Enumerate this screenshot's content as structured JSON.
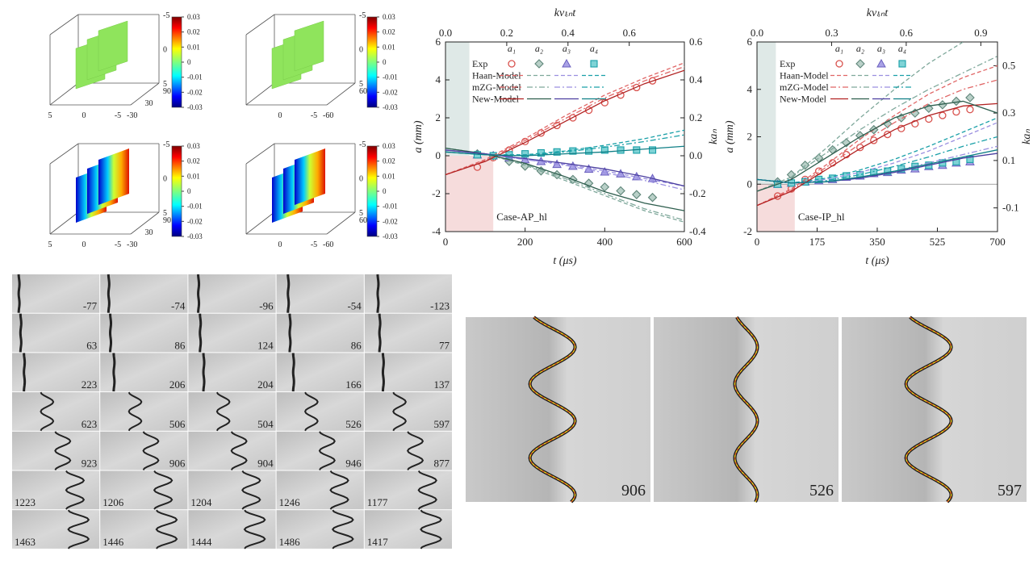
{
  "surface_plots": [
    {
      "x_ticks": [
        5,
        0,
        -5
      ],
      "y_ticks": [
        -30,
        30,
        90
      ],
      "z_ticks": [
        -5,
        0,
        5
      ],
      "colorbar_lim": [
        -0.03,
        0.03
      ],
      "colorbar_ticks": [
        0.03,
        0.02,
        0.01,
        0,
        -0.01,
        -0.02,
        -0.03
      ]
    },
    {
      "x_ticks": [
        0,
        -5
      ],
      "y_ticks": [
        -60,
        60
      ],
      "z_ticks": [
        -5,
        0,
        5
      ],
      "colorbar_lim": [
        -0.03,
        0.03
      ],
      "colorbar_ticks": [
        0.03,
        0.02,
        0.01,
        0,
        -0.01,
        -0.02,
        -0.03
      ]
    },
    {
      "x_ticks": [
        5,
        0,
        -5
      ],
      "y_ticks": [
        -30,
        30,
        90
      ],
      "z_ticks": [
        -5,
        0,
        5
      ],
      "colorbar_lim": [
        -0.03,
        0.03
      ],
      "colorbar_ticks": [
        0.03,
        0.02,
        0.01,
        0,
        -0.01,
        -0.02,
        -0.03
      ]
    },
    {
      "x_ticks": [
        0,
        -5
      ],
      "y_ticks": [
        -60,
        60
      ],
      "z_ticks": [
        -5,
        0,
        5
      ],
      "colorbar_lim": [
        -0.03,
        0.03
      ],
      "colorbar_ticks": [
        0.03,
        0.02,
        0.01,
        0,
        -0.01,
        -0.02,
        -0.03
      ]
    }
  ],
  "chart_data": [
    {
      "type": "line",
      "xlabel": "t (μs)",
      "ylabel": "a (mm)",
      "y2label": "kaₙ",
      "x2label": "kvₗᵢₙt",
      "annotation": "Case-AP_hl",
      "xlim": [
        0,
        600
      ],
      "xticks": [
        0,
        200,
        400,
        600
      ],
      "x2lim": [
        0,
        0.78
      ],
      "x2ticks": [
        {
          "value": 0,
          "label": "0.0"
        },
        0.2,
        0.4,
        0.6
      ],
      "ylim": [
        -4,
        6
      ],
      "yticks": [
        -4,
        -2,
        0,
        2,
        4,
        6
      ],
      "y2lim": [
        -0.4,
        0.6
      ],
      "y2ticks": [
        -0.4,
        -0.2,
        {
          "value": 0,
          "label": "0.0"
        },
        0.2,
        0.4,
        0.6
      ],
      "zero_line": false,
      "spans": [
        {
          "x": [
            0,
            60
          ],
          "y": [
            0,
            6
          ],
          "color": "#dfe9e7"
        },
        {
          "x": [
            0,
            120
          ],
          "y": [
            -4,
            0
          ],
          "color": "#f6dcdc"
        }
      ],
      "components": [
        {
          "name": "a₁",
          "color": "#d9534f",
          "marker": "circle"
        },
        {
          "name": "a₂",
          "color": "#5f8579",
          "marker": "diamond"
        },
        {
          "name": "a₃",
          "color": "#6a5fbf",
          "marker": "triangle"
        },
        {
          "name": "a₄",
          "color": "#1aa0a8",
          "marker": "square"
        }
      ],
      "series": [
        {
          "name": "Exp",
          "style": "markers",
          "x": [
            80,
            120,
            160,
            200,
            240,
            280,
            320,
            360,
            400,
            440,
            480,
            520
          ],
          "values": [
            [
              -0.6,
              -0.1,
              0.3,
              0.75,
              1.2,
              1.6,
              2.0,
              2.4,
              2.8,
              3.2,
              3.6,
              3.95
            ],
            [
              0.1,
              0,
              -0.3,
              -0.55,
              -0.8,
              -1.0,
              -1.25,
              -1.45,
              -1.65,
              -1.85,
              -2.05,
              -2.2
            ],
            [
              0.05,
              0,
              -0.1,
              -0.2,
              -0.3,
              -0.45,
              -0.55,
              -0.7,
              -0.85,
              -0.95,
              -1.1,
              -1.2
            ],
            [
              0.05,
              0,
              0.05,
              0.1,
              0.15,
              0.2,
              0.25,
              0.25,
              0.3,
              0.3,
              0.3,
              0.3
            ]
          ]
        },
        {
          "name": "Haan-Model",
          "style": "dashed",
          "colors": [
            "#e06666",
            "#7fa89b",
            "#9a8fe0",
            "#1aa0a8"
          ],
          "x": [
            0,
            100,
            200,
            300,
            400,
            500,
            600
          ],
          "values": [
            [
              -1.0,
              -0.2,
              0.9,
              2.1,
              3.2,
              4.1,
              4.9
            ],
            [
              0.4,
              0.1,
              -0.5,
              -1.3,
              -2.1,
              -2.9,
              -3.5
            ],
            [
              0.3,
              0.1,
              -0.2,
              -0.45,
              -0.8,
              -1.2,
              -1.6
            ],
            [
              0.2,
              0.05,
              0.05,
              0.25,
              0.55,
              0.9,
              1.35
            ]
          ]
        },
        {
          "name": "mZG-Model",
          "style": "dashdot",
          "colors": [
            "#e06666",
            "#7fa89b",
            "#9a8fe0",
            "#1aa0a8"
          ],
          "x": [
            0,
            100,
            200,
            300,
            400,
            500,
            600
          ],
          "values": [
            [
              -1.0,
              -0.25,
              0.8,
              1.95,
              3.05,
              3.95,
              4.7
            ],
            [
              0.4,
              0.1,
              -0.45,
              -1.2,
              -2.0,
              -2.8,
              -3.4
            ],
            [
              0.3,
              0.1,
              -0.2,
              -0.5,
              -0.9,
              -1.3,
              -1.8
            ],
            [
              0.2,
              0.05,
              0,
              0.2,
              0.45,
              0.75,
              1.1
            ]
          ]
        },
        {
          "name": "New-Model",
          "style": "solid",
          "colors": [
            "#b22222",
            "#2e5e4e",
            "#4b3fa0",
            "#0f7f86"
          ],
          "x": [
            0,
            100,
            200,
            300,
            400,
            500,
            600
          ],
          "values": [
            [
              -1.0,
              -0.3,
              0.7,
              1.8,
              2.9,
              3.8,
              4.5
            ],
            [
              0.4,
              0.1,
              -0.4,
              -1.1,
              -1.9,
              -2.5,
              -2.9
            ],
            [
              0.3,
              0.1,
              -0.15,
              -0.4,
              -0.7,
              -1.1,
              -1.6
            ],
            [
              0.2,
              0.05,
              0,
              0.1,
              0.2,
              0.35,
              0.5
            ]
          ]
        }
      ]
    },
    {
      "type": "line",
      "xlabel": "t (μs)",
      "ylabel": "a (mm)",
      "y2label": "kaₙ",
      "x2label": "kvₗᵢₙt",
      "annotation": "Case-IP_hl",
      "xlim": [
        0,
        700
      ],
      "xticks": [
        0,
        175,
        350,
        525,
        700
      ],
      "x2lim": [
        0,
        0.967
      ],
      "x2ticks": [
        {
          "value": 0,
          "label": "0.0"
        },
        0.3,
        0.6,
        0.9
      ],
      "ylim": [
        -2,
        6
      ],
      "yticks": [
        -2,
        0,
        2,
        4,
        6
      ],
      "y2lim": [
        -0.2,
        0.6
      ],
      "y2ticks": [
        -0.1,
        0.1,
        0.3,
        0.5
      ],
      "zero_line": true,
      "spans": [
        {
          "x": [
            0,
            55
          ],
          "y": [
            0,
            6
          ],
          "color": "#dfe9e7"
        },
        {
          "x": [
            0,
            110
          ],
          "y": [
            -2,
            0
          ],
          "color": "#f6dcdc"
        }
      ],
      "components": [
        {
          "name": "a₁",
          "color": "#d9534f",
          "marker": "circle"
        },
        {
          "name": "a₂",
          "color": "#5f8579",
          "marker": "diamond"
        },
        {
          "name": "a₃",
          "color": "#6a5fbf",
          "marker": "triangle"
        },
        {
          "name": "a₄",
          "color": "#1aa0a8",
          "marker": "square"
        }
      ],
      "series": [
        {
          "name": "Exp",
          "style": "markers",
          "x": [
            60,
            100,
            140,
            180,
            220,
            260,
            300,
            340,
            380,
            420,
            460,
            500,
            540,
            580,
            620
          ],
          "values": [
            [
              -0.5,
              -0.2,
              0.2,
              0.55,
              0.9,
              1.25,
              1.55,
              1.85,
              2.1,
              2.35,
              2.55,
              2.75,
              2.9,
              3.05,
              3.15
            ],
            [
              0.1,
              0.4,
              0.8,
              1.1,
              1.45,
              1.75,
              2.05,
              2.3,
              2.55,
              2.8,
              3.0,
              3.2,
              3.35,
              3.5,
              3.65
            ],
            [
              0,
              0.05,
              0.1,
              0.15,
              0.2,
              0.3,
              0.35,
              0.45,
              0.5,
              0.6,
              0.65,
              0.75,
              0.8,
              0.9,
              0.95
            ],
            [
              0,
              0.05,
              0.1,
              0.2,
              0.25,
              0.35,
              0.4,
              0.5,
              0.55,
              0.65,
              0.75,
              0.8,
              0.9,
              0.95,
              1.05
            ]
          ]
        },
        {
          "name": "Haan-Model",
          "style": "dashed",
          "colors": [
            "#e06666",
            "#7fa89b",
            "#9a8fe0",
            "#1aa0a8"
          ],
          "x": [
            0,
            100,
            200,
            300,
            400,
            500,
            600,
            700
          ],
          "values": [
            [
              -0.9,
              -0.2,
              0.8,
              1.9,
              2.9,
              3.8,
              4.5,
              5.0
            ],
            [
              -0.3,
              0.3,
              1.5,
              2.8,
              4.0,
              5.1,
              6.0,
              6.7
            ],
            [
              0.2,
              0.05,
              0.2,
              0.5,
              0.9,
              1.4,
              2.0,
              2.6
            ],
            [
              0.2,
              0.05,
              0.25,
              0.6,
              1.05,
              1.6,
              2.2,
              2.8
            ]
          ]
        },
        {
          "name": "mZG-Model",
          "style": "dashdot",
          "colors": [
            "#e06666",
            "#7fa89b",
            "#9a8fe0",
            "#1aa0a8"
          ],
          "x": [
            0,
            100,
            200,
            300,
            400,
            500,
            600,
            700
          ],
          "values": [
            [
              -0.9,
              -0.25,
              0.7,
              1.7,
              2.6,
              3.4,
              4.0,
              4.4
            ],
            [
              -0.3,
              0.3,
              1.3,
              2.3,
              3.2,
              4.0,
              4.7,
              5.4
            ],
            [
              0.2,
              0.05,
              0.1,
              0.3,
              0.55,
              0.9,
              1.25,
              1.6
            ],
            [
              0.2,
              0.05,
              0.15,
              0.4,
              0.75,
              1.15,
              1.6,
              2.0
            ]
          ]
        },
        {
          "name": "New-Model",
          "style": "solid",
          "colors": [
            "#b22222",
            "#2e5e4e",
            "#4b3fa0",
            "#0f7f86"
          ],
          "x": [
            0,
            100,
            200,
            300,
            400,
            500,
            600,
            700
          ],
          "values": [
            [
              -0.9,
              -0.3,
              0.6,
              1.5,
              2.3,
              2.9,
              3.3,
              3.4
            ],
            [
              -0.3,
              0.2,
              1.1,
              2.0,
              2.8,
              3.3,
              3.5,
              3.0
            ],
            [
              0.2,
              0.05,
              0.1,
              0.25,
              0.5,
              0.8,
              1.1,
              1.3
            ],
            [
              0.2,
              0.05,
              0.1,
              0.3,
              0.55,
              0.85,
              1.15,
              1.45
            ]
          ]
        }
      ]
    }
  ],
  "photo_grid": {
    "rows": [
      [
        -77,
        -74,
        -96,
        -54,
        -123
      ],
      [
        63,
        86,
        124,
        86,
        77
      ],
      [
        223,
        206,
        204,
        166,
        137
      ],
      [
        623,
        506,
        504,
        526,
        597
      ],
      [
        923,
        906,
        904,
        946,
        877
      ],
      [
        1223,
        1206,
        1204,
        1246,
        1177
      ],
      [
        1463,
        1446,
        1444,
        1486,
        1417
      ]
    ]
  },
  "photos": [
    906,
    526,
    597
  ]
}
